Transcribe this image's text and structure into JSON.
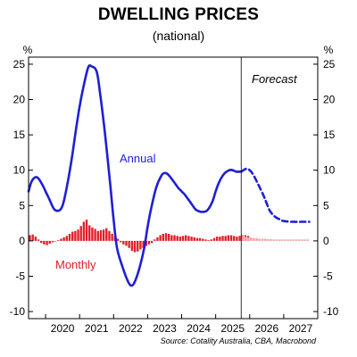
{
  "chart_data": {
    "type": "line",
    "title": "DWELLING PRICES",
    "subtitle": "(national)",
    "y_unit_left": "%",
    "y_unit_right": "%",
    "ylim": [
      -11,
      26
    ],
    "y_ticks": [
      -10,
      -5,
      0,
      5,
      10,
      15,
      20,
      25
    ],
    "x_range": [
      2019.5,
      2028.0
    ],
    "x_tick_labels": [
      "2020",
      "2021",
      "2022",
      "2023",
      "2024",
      "2025",
      "2026",
      "2027"
    ],
    "forecast_start": 2025.75,
    "annotations": {
      "forecast": "Forecast",
      "annual": "Annual",
      "monthly": "Monthly"
    },
    "source": "Source: Cotality Australia, CBA, Macrobond",
    "colors": {
      "annual": "#1f1fd6",
      "monthly": "#e0202a",
      "monthly_forecast": "#f2a0a0"
    },
    "series": [
      {
        "name": "Annual",
        "type": "line",
        "x": [
          2019.5,
          2019.6,
          2019.75,
          2019.9,
          2020.0,
          2020.1,
          2020.25,
          2020.4,
          2020.5,
          2020.6,
          2020.75,
          2020.9,
          2021.0,
          2021.1,
          2021.25,
          2021.35,
          2021.5,
          2021.6,
          2021.75,
          2021.9,
          2022.0,
          2022.1,
          2022.25,
          2022.4,
          2022.5,
          2022.6,
          2022.75,
          2022.9,
          2023.0,
          2023.1,
          2023.25,
          2023.4,
          2023.5,
          2023.6,
          2023.75,
          2023.9,
          2024.0,
          2024.1,
          2024.25,
          2024.4,
          2024.5,
          2024.6,
          2024.75,
          2024.9,
          2025.0,
          2025.1,
          2025.25,
          2025.4,
          2025.5,
          2025.6,
          2025.75
        ],
        "values": [
          7.0,
          8.5,
          9.0,
          8.0,
          7.0,
          6.0,
          4.5,
          4.3,
          5.0,
          7.0,
          11.0,
          16.0,
          19.0,
          21.5,
          24.5,
          24.7,
          24.0,
          21.0,
          15.0,
          8.0,
          3.0,
          -1.0,
          -3.5,
          -5.5,
          -6.3,
          -6.0,
          -4.0,
          -1.0,
          2.0,
          4.5,
          7.5,
          9.2,
          9.6,
          9.4,
          8.5,
          7.5,
          7.0,
          6.5,
          5.5,
          4.5,
          4.2,
          4.1,
          4.3,
          5.5,
          7.0,
          8.3,
          9.5,
          10.0,
          10.0,
          9.8,
          9.8
        ]
      },
      {
        "name": "Annual (forecast)",
        "type": "line",
        "dashed": true,
        "x": [
          2025.75,
          2025.9,
          2026.0,
          2026.1,
          2026.25,
          2026.4,
          2026.5,
          2026.6,
          2026.75,
          2026.9,
          2027.0,
          2027.25,
          2027.5,
          2027.75
        ],
        "values": [
          9.8,
          10.2,
          10.0,
          9.4,
          8.0,
          6.5,
          5.3,
          4.2,
          3.4,
          3.0,
          2.8,
          2.7,
          2.7,
          2.7
        ]
      },
      {
        "name": "Monthly",
        "type": "bar",
        "x_start": 2019.54,
        "x_step": 0.08333,
        "values": [
          0.8,
          0.9,
          0.6,
          0.2,
          -0.3,
          -0.5,
          -0.6,
          -0.4,
          -0.2,
          0.0,
          0.1,
          0.3,
          0.5,
          0.7,
          1.0,
          1.3,
          1.4,
          1.6,
          2.1,
          2.7,
          3.0,
          2.2,
          1.9,
          1.7,
          1.4,
          1.5,
          1.6,
          1.8,
          1.4,
          1.0,
          0.7,
          0.3,
          -0.2,
          -0.5,
          -0.7,
          -1.0,
          -1.4,
          -1.6,
          -1.5,
          -1.2,
          -1.0,
          -0.7,
          -0.5,
          -0.3,
          0.2,
          0.5,
          0.8,
          1.0,
          1.1,
          1.0,
          0.8,
          0.8,
          0.7,
          0.6,
          0.7,
          0.8,
          0.7,
          0.6,
          0.5,
          0.4,
          0.4,
          0.3,
          0.2,
          0.1,
          0.2,
          0.4,
          0.6,
          0.6,
          0.7,
          0.7,
          0.8,
          0.8,
          0.7,
          0.6,
          0.7,
          0.8,
          0.8,
          0.7
        ]
      },
      {
        "name": "Monthly (forecast)",
        "type": "bar",
        "x_start": 2025.79,
        "x_step": 0.08333,
        "values": [
          0.7,
          0.6,
          0.5,
          0.5,
          0.4,
          0.4,
          0.3,
          0.3,
          0.3,
          0.25,
          0.25,
          0.2,
          0.2,
          0.2,
          0.2,
          0.2,
          0.2,
          0.2,
          0.2,
          0.2,
          0.2,
          0.2,
          0.2,
          0.2
        ]
      }
    ]
  }
}
